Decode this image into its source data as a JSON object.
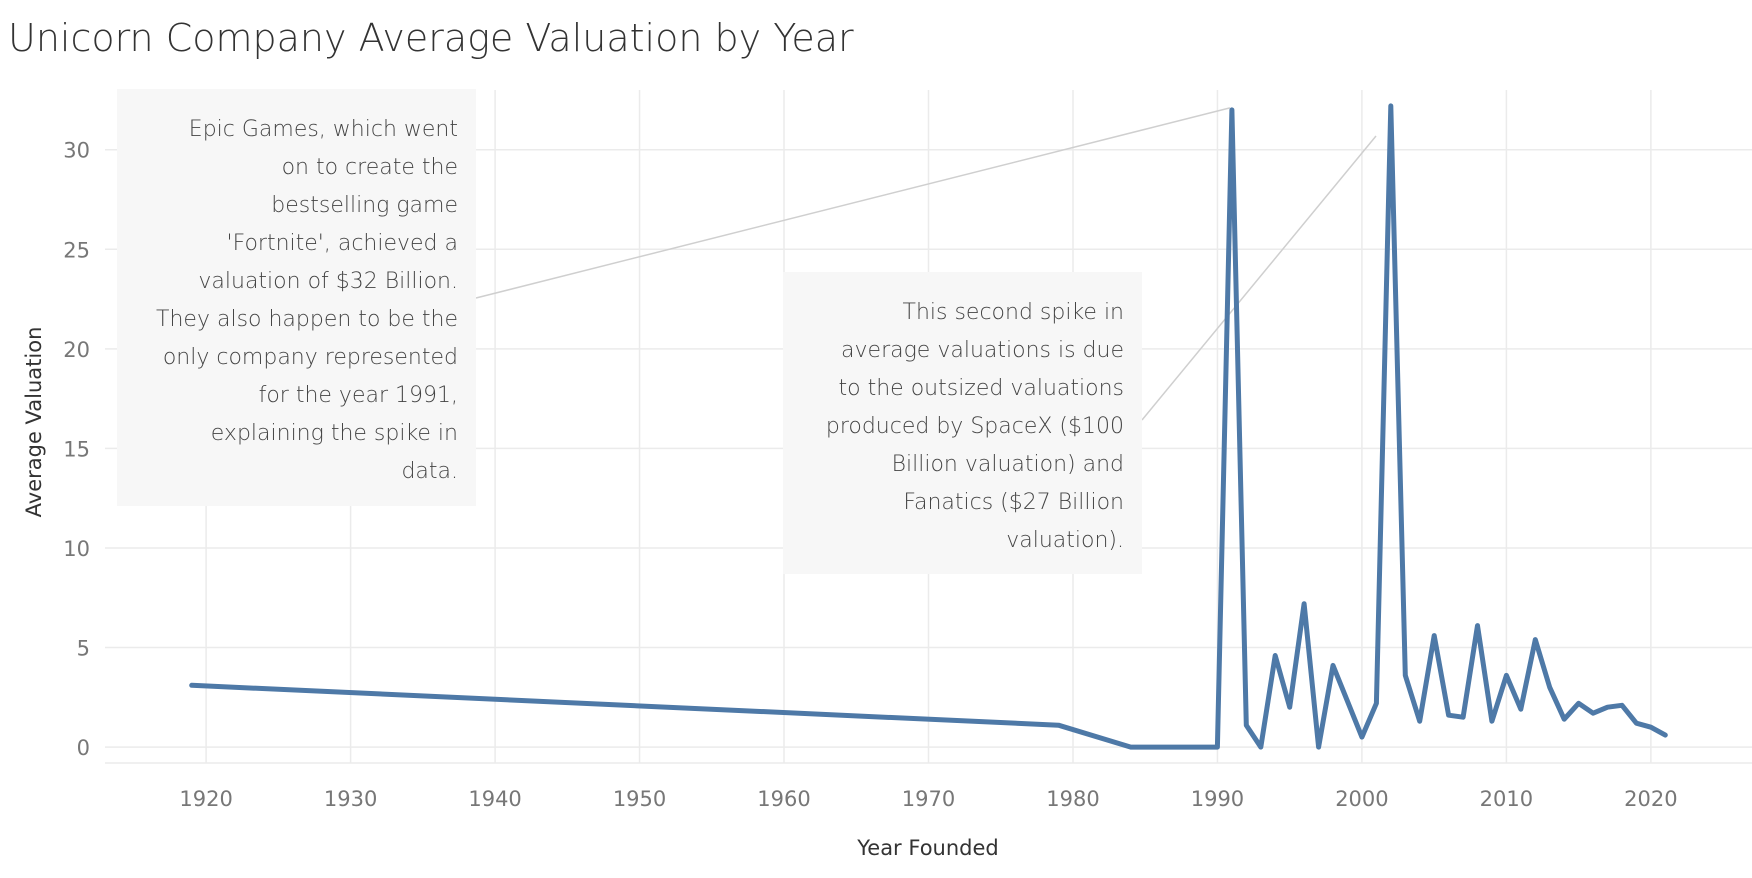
{
  "chart_data": {
    "type": "line",
    "title": "Unicorn Company Average Valuation by Year",
    "xlabel": "Year Founded",
    "ylabel": "Average Valuation",
    "xlim": [
      1913,
      2027
    ],
    "ylim": [
      -0.8,
      33
    ],
    "x_ticks": [
      1920,
      1930,
      1940,
      1950,
      1960,
      1970,
      1980,
      1990,
      2000,
      2010,
      2020
    ],
    "y_ticks": [
      0,
      5,
      10,
      15,
      20,
      25,
      30
    ],
    "grid": true,
    "color": "#4e79a7",
    "series": [
      {
        "x": [
          1919,
          1979,
          1984,
          1990,
          1991,
          1992,
          1993,
          1994,
          1995,
          1996,
          1997,
          1998,
          1999,
          2000,
          2001,
          2002,
          2003,
          2004,
          2005,
          2006,
          2007,
          2008,
          2009,
          2010,
          2011,
          2012,
          2013,
          2014,
          2015,
          2016,
          2017,
          2018,
          2019,
          2020,
          2021
        ],
        "y": [
          3.1,
          1.1,
          0,
          0,
          32,
          1.1,
          0,
          4.6,
          2,
          7.2,
          0,
          4.1,
          2.3,
          0.5,
          2.2,
          32.2,
          3.6,
          1.3,
          5.6,
          1.6,
          1.5,
          6.1,
          1.3,
          3.6,
          1.9,
          5.4,
          3,
          1.4,
          2.2,
          1.7,
          2,
          2.1,
          1.2,
          1,
          0.6
        ]
      }
    ],
    "annotations": [
      {
        "text": "Epic Games, which went on to create the bestselling game 'Fortnite', achieved a valuation of $32 Billion. They also happen to be the only company represented for the year 1991, explaining the spike in data.",
        "lines": [
          "Epic Games, which went",
          "on to create the",
          "bestselling game",
          "'Fortnite', achieved a",
          "valuation of $32 Billion.",
          "They also happen to be the",
          "only company represented",
          "for the year 1991,",
          "explaining the spike in",
          "data."
        ]
      },
      {
        "text": "This second spike in average valuations is due to the outsized valuations produced by SpaceX ($100 Billion valuation) and Fanatics ($27 Billion valuation).",
        "lines": [
          "This second spike in",
          "average valuations is due",
          "to the outsized valuations",
          "produced by SpaceX ($100",
          "Billion valuation) and",
          "Fanatics ($27 Billion",
          "valuation)."
        ]
      }
    ]
  }
}
